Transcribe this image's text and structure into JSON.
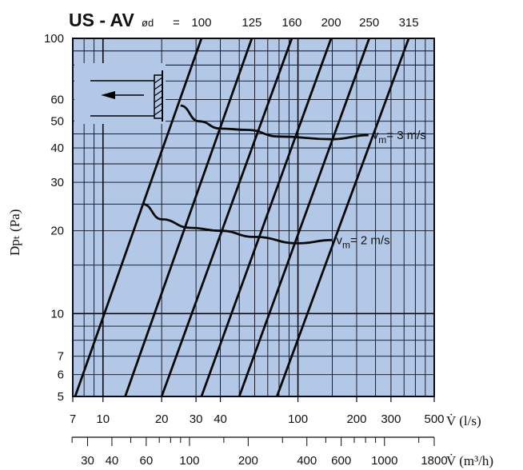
{
  "chart_data": {
    "type": "line",
    "title": "US - AV",
    "diameter_prefix": "ød",
    "diameter_eq": "=",
    "diameters": [
      "100",
      "125",
      "160",
      "200",
      "250",
      "315"
    ],
    "x_scale": "log",
    "y_scale": "log",
    "xlim": [
      7,
      500
    ],
    "ylim": [
      5,
      100
    ],
    "xlabel": "V̇ (l/s)",
    "x2label": "V̇ (m³/h)",
    "ylabel": "Dpₜ (Pa)",
    "x_ticks": [
      7,
      10,
      20,
      30,
      40,
      100,
      200,
      300,
      500
    ],
    "x2_ticks": [
      30,
      40,
      60,
      100,
      200,
      400,
      600,
      1000,
      1800
    ],
    "y_ticks": [
      5,
      6,
      7,
      10,
      20,
      30,
      40,
      50,
      60,
      100
    ],
    "grid": true,
    "series": [
      {
        "name": "100",
        "points": [
          [
            7.2,
            5
          ],
          [
            32,
            100
          ]
        ]
      },
      {
        "name": "125",
        "points": [
          [
            13,
            5
          ],
          [
            58,
            100
          ]
        ]
      },
      {
        "name": "160",
        "points": [
          [
            20,
            5
          ],
          [
            93,
            100
          ]
        ]
      },
      {
        "name": "200",
        "points": [
          [
            32,
            5
          ],
          [
            148,
            100
          ]
        ]
      },
      {
        "name": "250",
        "points": [
          [
            50,
            5
          ],
          [
            232,
            100
          ]
        ]
      },
      {
        "name": "315",
        "points": [
          [
            78,
            5
          ],
          [
            370,
            100
          ]
        ]
      }
    ],
    "velocity_curves": [
      {
        "label": "vm= 3 m/s",
        "label_parts": [
          "v",
          "m",
          "= 3 m/s"
        ],
        "points": [
          [
            25,
            57
          ],
          [
            31,
            50
          ],
          [
            40,
            47
          ],
          [
            55,
            46.5
          ],
          [
            80,
            44
          ],
          [
            150,
            43
          ],
          [
            230,
            44.5
          ]
        ]
      },
      {
        "label": "vm= 2 m/s",
        "label_parts": [
          "v",
          "m",
          "= 2 m/s"
        ],
        "points": [
          [
            16,
            25
          ],
          [
            20,
            22
          ],
          [
            28,
            20.5
          ],
          [
            40,
            20
          ],
          [
            60,
            19
          ],
          [
            100,
            18
          ],
          [
            150,
            18.5
          ]
        ]
      }
    ]
  },
  "colors": {
    "background": "#b3c8e6",
    "grid": "#0a0a14",
    "line": "#0a0a0a"
  },
  "icons": {
    "inset": "airflow-direction-grille-icon"
  }
}
